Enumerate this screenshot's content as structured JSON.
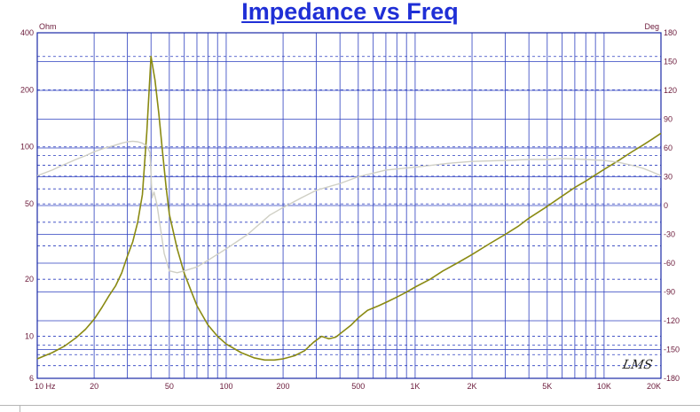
{
  "chart_data": {
    "type": "line",
    "title": "Impedance vs Freq",
    "x_scale": "log",
    "xlim": [
      10,
      20000
    ],
    "x_ticks": [
      {
        "value": 10,
        "label": "10  Hz"
      },
      {
        "value": 20,
        "label": "20"
      },
      {
        "value": 50,
        "label": "50"
      },
      {
        "value": 100,
        "label": "100"
      },
      {
        "value": 200,
        "label": "200"
      },
      {
        "value": 500,
        "label": "500"
      },
      {
        "value": 1000,
        "label": "1K"
      },
      {
        "value": 2000,
        "label": "2K"
      },
      {
        "value": 5000,
        "label": "5K"
      },
      {
        "value": 10000,
        "label": "10K"
      },
      {
        "value": 20000,
        "label": "20K"
      }
    ],
    "y_left": {
      "unit": "Ohm",
      "scale": "log",
      "lim": [
        6,
        400
      ],
      "ticks": [
        {
          "value": 400,
          "label": "400"
        },
        {
          "value": 200,
          "label": "200"
        },
        {
          "value": 100,
          "label": "100"
        },
        {
          "value": 50,
          "label": "50"
        },
        {
          "value": 20,
          "label": "20"
        },
        {
          "value": 10,
          "label": "10"
        },
        {
          "value": 6,
          "label": "6"
        }
      ]
    },
    "y_right": {
      "unit": "Deg",
      "scale": "linear",
      "lim": [
        -180,
        180
      ],
      "ticks": [
        180,
        150,
        120,
        90,
        60,
        30,
        0,
        -30,
        -60,
        -90,
        -120,
        -150,
        -180
      ]
    },
    "grid": true,
    "series": [
      {
        "axis": "left",
        "color": "#8a8a12",
        "points": [
          [
            10,
            7.6
          ],
          [
            12,
            8.2
          ],
          [
            14,
            8.9
          ],
          [
            16,
            9.8
          ],
          [
            18,
            10.9
          ],
          [
            20,
            12.3
          ],
          [
            22,
            14.2
          ],
          [
            24,
            16.4
          ],
          [
            26,
            18.5
          ],
          [
            28,
            21.6
          ],
          [
            30,
            26.5
          ],
          [
            32,
            31.5
          ],
          [
            34,
            40
          ],
          [
            36,
            56
          ],
          [
            38,
            120
          ],
          [
            40,
            300
          ],
          [
            42,
            225
          ],
          [
            44,
            150
          ],
          [
            46,
            95
          ],
          [
            48,
            62
          ],
          [
            50,
            44
          ],
          [
            55,
            29
          ],
          [
            60,
            21.5
          ],
          [
            65,
            17.5
          ],
          [
            70,
            14.5
          ],
          [
            80,
            11.5
          ],
          [
            90,
            10
          ],
          [
            100,
            9.1
          ],
          [
            120,
            8.2
          ],
          [
            140,
            7.7
          ],
          [
            160,
            7.5
          ],
          [
            180,
            7.5
          ],
          [
            200,
            7.6
          ],
          [
            230,
            7.9
          ],
          [
            260,
            8.4
          ],
          [
            290,
            9.3
          ],
          [
            320,
            10
          ],
          [
            350,
            9.7
          ],
          [
            380,
            9.9
          ],
          [
            420,
            10.7
          ],
          [
            460,
            11.5
          ],
          [
            500,
            12.5
          ],
          [
            560,
            13.7
          ],
          [
            640,
            14.5
          ],
          [
            720,
            15.3
          ],
          [
            800,
            16.1
          ],
          [
            900,
            17.1
          ],
          [
            1000,
            18.2
          ],
          [
            1200,
            20
          ],
          [
            1400,
            22.1
          ],
          [
            1700,
            24.6
          ],
          [
            2000,
            27
          ],
          [
            2500,
            31
          ],
          [
            3000,
            34.5
          ],
          [
            3500,
            38
          ],
          [
            4000,
            42
          ],
          [
            5000,
            48.5
          ],
          [
            6000,
            55
          ],
          [
            7000,
            61
          ],
          [
            8000,
            66
          ],
          [
            10000,
            76
          ],
          [
            12000,
            85
          ],
          [
            14000,
            94
          ],
          [
            16000,
            102
          ],
          [
            18000,
            110
          ],
          [
            20000,
            118
          ]
        ]
      },
      {
        "axis": "right",
        "color": "#cfcfc4",
        "points": [
          [
            10,
            31
          ],
          [
            12,
            37
          ],
          [
            14,
            43
          ],
          [
            16,
            48
          ],
          [
            18,
            52
          ],
          [
            20,
            56
          ],
          [
            22,
            59
          ],
          [
            25,
            62
          ],
          [
            28,
            65
          ],
          [
            30,
            66.5
          ],
          [
            32,
            67
          ],
          [
            34,
            66.5
          ],
          [
            36,
            65
          ],
          [
            38,
            62
          ],
          [
            39.5,
            55
          ],
          [
            40.5,
            8
          ],
          [
            41.5,
            14
          ],
          [
            43,
            1
          ],
          [
            45,
            -25
          ],
          [
            47,
            -50
          ],
          [
            50,
            -68
          ],
          [
            55,
            -70
          ],
          [
            60,
            -68
          ],
          [
            70,
            -64
          ],
          [
            80,
            -57
          ],
          [
            100,
            -45
          ],
          [
            130,
            -30
          ],
          [
            170,
            -10
          ],
          [
            200,
            -2
          ],
          [
            250,
            8
          ],
          [
            300,
            16
          ],
          [
            400,
            23
          ],
          [
            500,
            30
          ],
          [
            700,
            37
          ],
          [
            1000,
            40
          ],
          [
            1500,
            44
          ],
          [
            2000,
            46
          ],
          [
            3000,
            47
          ],
          [
            4000,
            48
          ],
          [
            5000,
            48
          ],
          [
            6000,
            49
          ],
          [
            8000,
            48
          ],
          [
            10000,
            47
          ],
          [
            12000,
            45
          ],
          [
            14000,
            42
          ],
          [
            16000,
            39
          ],
          [
            18000,
            35
          ],
          [
            20000,
            31
          ]
        ]
      }
    ]
  },
  "watermark": "LMS"
}
